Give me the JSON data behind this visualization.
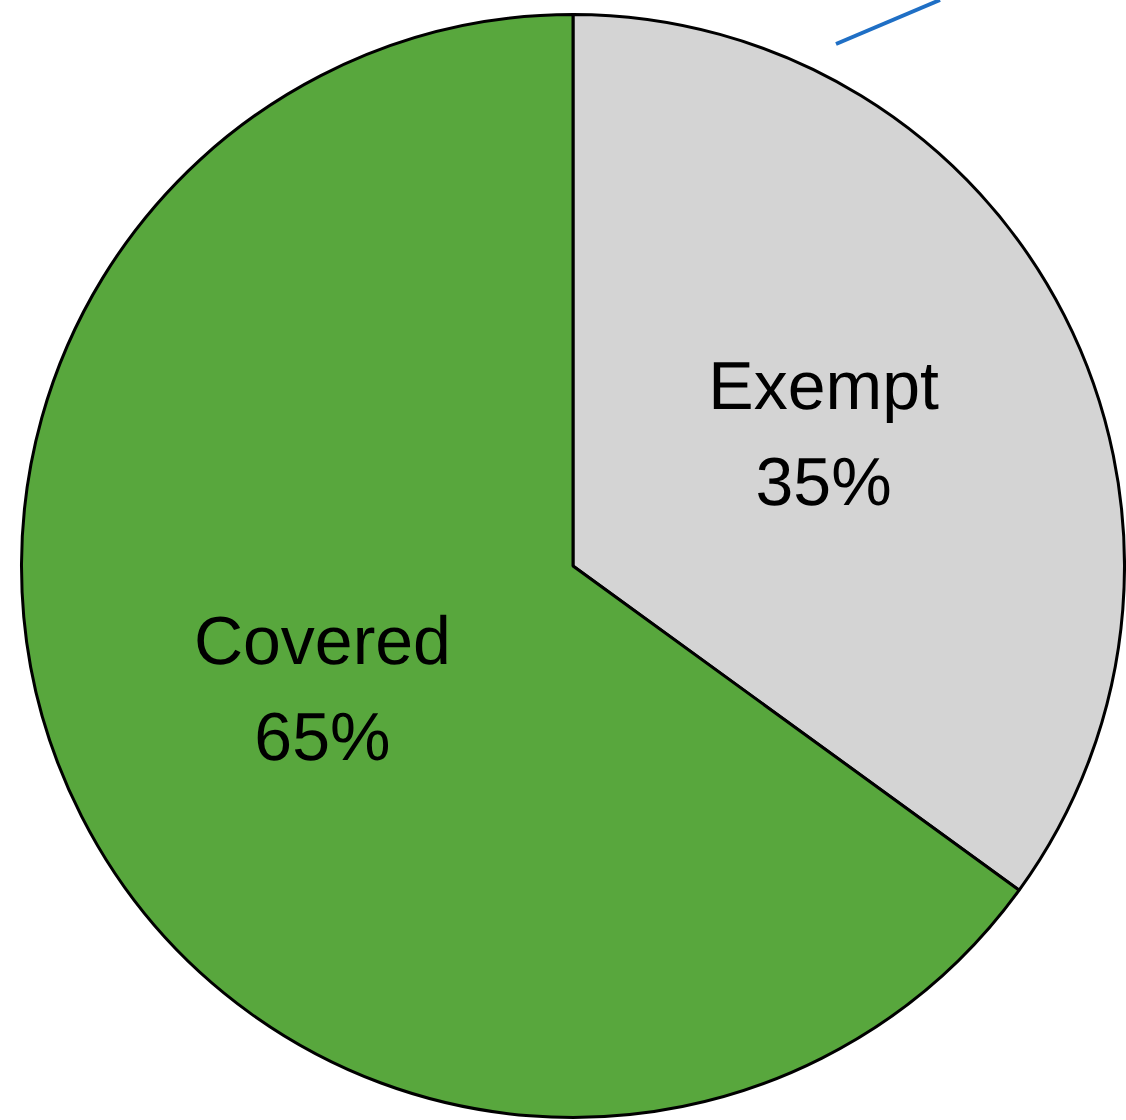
{
  "chart_data": {
    "type": "pie",
    "categories": [
      "Exempt",
      "Covered"
    ],
    "values": [
      35,
      65
    ],
    "colors": [
      "#d4d4d4",
      "#58a73d"
    ],
    "value_labels": [
      "35%",
      "65%"
    ],
    "legend": false
  }
}
